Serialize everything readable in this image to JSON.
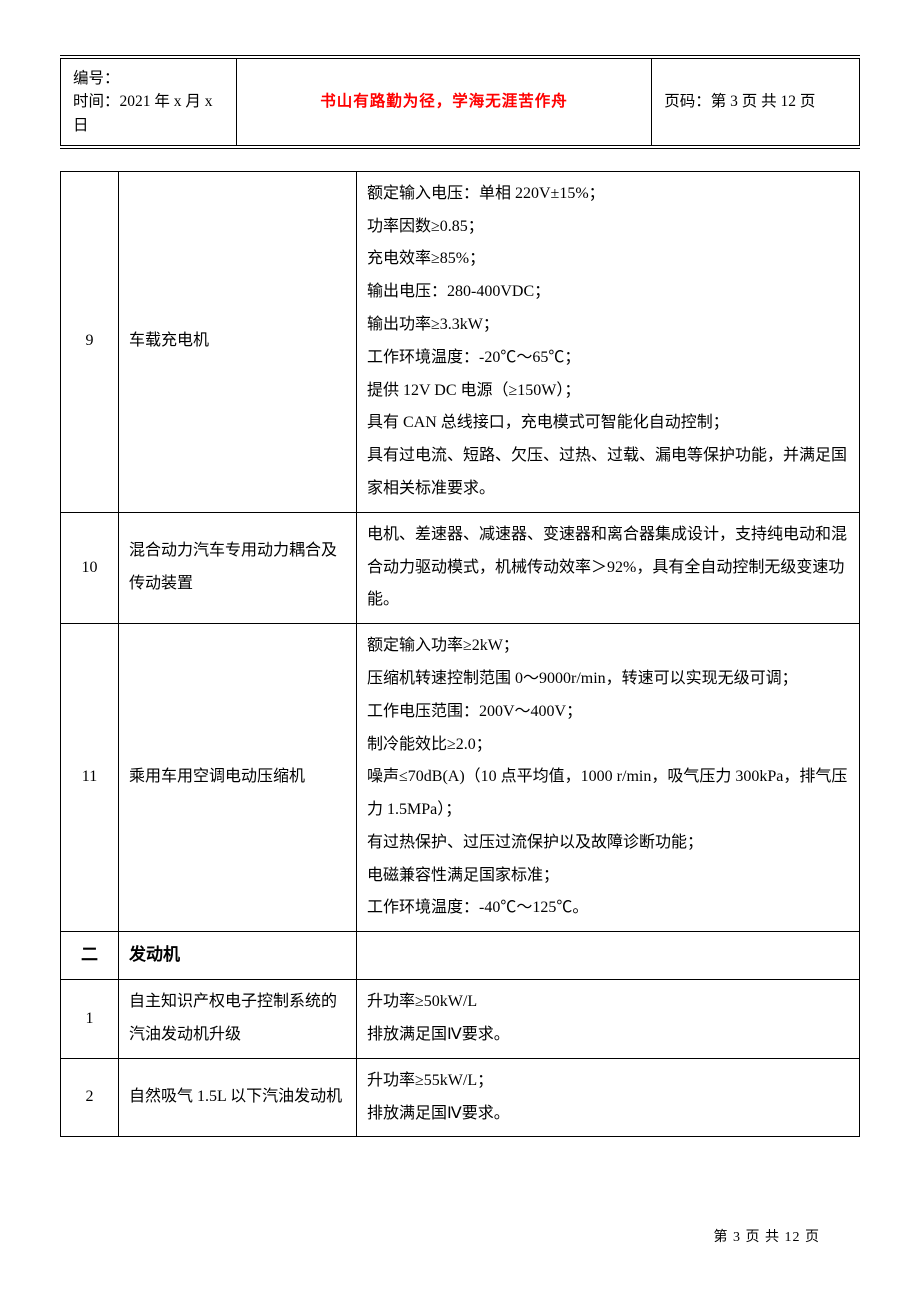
{
  "header": {
    "doc_no_label": "编号：",
    "time_line": "时间：2021 年 x 月 x 日",
    "motto": "书山有路勤为径，学海无涯苦作舟",
    "page_line": "页码：第 3 页 共 12 页"
  },
  "rows": [
    {
      "num": "9",
      "name": "车载充电机",
      "spec_lines": [
        "额定输入电压：单相 220V±15%；",
        "功率因数≥0.85；",
        "充电效率≥85%；",
        "输出电压：280‑400VDC；",
        "输出功率≥3.3kW；",
        "工作环境温度：‑20℃～65℃；",
        "提供 12V DC 电源（≥150W）；",
        "具有 CAN 总线接口，充电模式可智能化自动控制；",
        "具有过电流、短路、欠压、过热、过载、漏电等保护功能，并满足国家相关标准要求。"
      ]
    },
    {
      "num": "10",
      "name": "混合动力汽车专用动力耦合及传动装置",
      "spec_lines": [
        "电机、差速器、减速器、变速器和离合器集成设计，支持纯电动和混合动力驱动模式，机械传动效率＞92%，具有全自动控制无级变速功能。"
      ]
    },
    {
      "num": "11",
      "name": "乘用车用空调电动压缩机",
      "spec_lines": [
        "额定输入功率≥2kW；",
        "压缩机转速控制范围 0～9000r/min，转速可以实现无级可调；",
        "工作电压范围：200V～400V；",
        "制冷能效比≥2.0；",
        "噪声≤70dB(A)（10 点平均值，1000 r/min，吸气压力 300kPa，排气压力 1.5MPa）；",
        "有过热保护、过压过流保护以及故障诊断功能；",
        "电磁兼容性满足国家标准；",
        "工作环境温度：‑40℃～125℃。"
      ]
    }
  ],
  "section": {
    "num": "二",
    "name": "发动机",
    "spec": ""
  },
  "sub_rows": [
    {
      "num": "1",
      "name": "自主知识产权电子控制系统的汽油发动机升级",
      "spec_lines": [
        "升功率≥50kW/L",
        "排放满足国Ⅳ要求。"
      ]
    },
    {
      "num": "2",
      "name": "自然吸气 1.5L 以下汽油发动机",
      "spec_lines": [
        "升功率≥55kW/L；",
        "排放满足国Ⅳ要求。"
      ]
    }
  ],
  "footer": "第 3 页 共 12 页"
}
